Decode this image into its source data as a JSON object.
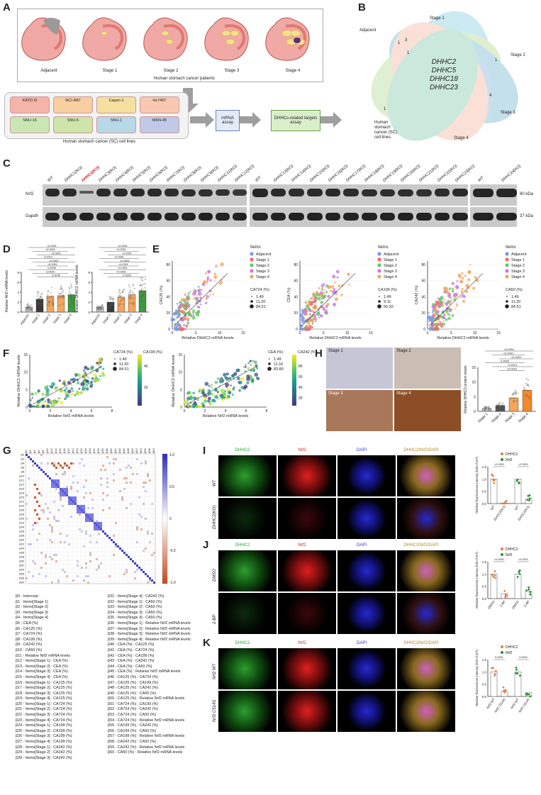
{
  "panels": {
    "A": {
      "letter": "A",
      "stomach_labels": [
        "Adjacent",
        "Stage 1",
        "Stage 2",
        "Stage 3",
        "Stage 4"
      ],
      "patients_caption": "Human stomach cancer patients",
      "cell_lines": [
        "KATO III",
        "NCI-N87",
        "Capan-1",
        "Hs746T",
        "SNU-16",
        "SNU-5",
        "SNU-1",
        "MKN-45"
      ],
      "cell_lines_caption": "Human stomach cancer (SC) cell lines",
      "step1": "mRNA assay",
      "step2": "DHHCs-related targets assay"
    },
    "B": {
      "letter": "B",
      "sets": [
        "Stage 1",
        "Adjacent",
        "Stage 2",
        "Stage 3",
        "Stage 4",
        "Human stomach cancer (SC) cell lines"
      ],
      "center_genes": [
        "DHHC2",
        "DHHC5",
        "DHHC18",
        "DHHC23"
      ],
      "counts": [
        "1",
        "3",
        "1",
        "1",
        "4",
        "1"
      ]
    },
    "C": {
      "letter": "C",
      "lanes_1": [
        "WT",
        "DHHC1(KO)",
        "DHHC2(KO)",
        "DHHC3(KO)",
        "DHHC4(KO)",
        "DHHC5(KO)",
        "DHHC6(KO)",
        "DHHC7(KO)",
        "DHHC8(KO)",
        "DHHC9(KO)",
        "DHHC11(KO)",
        "DHHC12(KO)"
      ],
      "lanes_2": [
        "WT",
        "DHHC13(KO)",
        "DHHC14(KO)",
        "DHHC15(KO)",
        "DHHC16(KO)",
        "DHHC17(KO)",
        "DHHC18(KO)",
        "DHHC19(KO)",
        "DHHC20(KO)",
        "DHHC21(KO)",
        "DHHC22(KO)",
        "DHHC23(KO)"
      ],
      "lanes_3": [
        "WT",
        "DHHC24(KO)"
      ],
      "highlight_lane": "DHHC2(KO)",
      "highlight_color": "#d0191c",
      "rows": [
        "Nrf2",
        "Gapdh"
      ],
      "sizes": [
        "80 kDa",
        "37 kDa"
      ],
      "nrf2_levels_1": [
        0.92,
        0.9,
        0.35,
        0.88,
        0.9,
        0.92,
        0.9,
        0.88,
        0.86,
        0.84,
        0.8,
        0.75
      ],
      "nrf2_levels_2": [
        0.95,
        0.9,
        0.88,
        0.9,
        0.9,
        0.88,
        0.85,
        0.86,
        0.84,
        0.82,
        0.88,
        0.9
      ],
      "nrf2_levels_3": [
        0.95,
        0.95
      ]
    },
    "D": {
      "letter": "D",
      "ylabel1": "Relative Nrf2 mRNA levels",
      "ylabel2": "Relative DHHC2 mRNA levels",
      "categories": [
        "Adjacent",
        "Stage 1",
        "Stage 2",
        "Stage 3",
        "Stage 4"
      ],
      "pvalues1": [
        "<0.0001",
        "<0.0001",
        "<0.0001",
        "0.0010",
        "<0.0001",
        "<0.0001",
        "0.5208",
        "0.0429",
        "0.0045"
      ],
      "pvalues2": [
        "<0.0001",
        "<0.0001",
        "<0.0001",
        "<0.0001",
        "<0.0001",
        "<0.0001",
        "<0.0001",
        "<0.0001",
        "0.9999"
      ]
    },
    "E": {
      "letter": "E",
      "xlabel": "Relative DHHC2 mRNA levels",
      "ylabels": [
        "CA125 (%)",
        "CEA (%)",
        "CA242 (%)"
      ],
      "legend_title": "Items",
      "size_titles": [
        "CA724 (%)",
        "CA199 (%)",
        "CA50 (%)"
      ],
      "size_values": [
        [
          "1.49",
          "11.20",
          "84.51"
        ],
        [
          "1.49",
          "9.11",
          "55.92"
        ],
        [
          "1.49",
          "11.20",
          "84.51"
        ]
      ],
      "items": [
        "Adjacent",
        "Stage 1",
        "Stage 2",
        "Stage 3",
        "Stage 4"
      ],
      "item_colors": [
        "#7b9be8",
        "#f06a6a",
        "#6cc46c",
        "#c77be0",
        "#f5a55a"
      ]
    },
    "F": {
      "letter": "F",
      "xlabel": "Relative Nrf2 mRNA levels",
      "ylabel": "Relative DHHC2 mRNA levels",
      "color_titles": [
        "CA199 (%)",
        "CA242 (%)"
      ],
      "size_titles": [
        "CA724 (%)",
        "CEA (%)"
      ],
      "size_values": [
        [
          "1.49",
          "11.20",
          "84.51"
        ],
        [
          "1.49",
          "11.16",
          "83.80"
        ]
      ]
    },
    "G": {
      "letter": "G",
      "colorbar_ticks": [
        "1.0",
        "0.5",
        "0",
        "-0.5",
        "-1.0"
      ],
      "legend_col1": [
        "β0 - Intercept",
        "β1 - Items[Stage 1]",
        "β2 - Items[Stage 2]",
        "β3 - Items[Stage 3]",
        "β4 - Items[Stage 4]",
        "β5 - CEA (%)",
        "β6 - CA125 (%)",
        "β7 - CA724 (%)",
        "β8 - CA199 (%)",
        "β9 - CA242 (%)",
        "β10 - CA50 (%)",
        "β11 - Relative Nrf2 mRNA levels",
        "β12 - Items[Stage 1] : CEA (%)",
        "β13 - Items[Stage 2] : CEA (%)",
        "β14 - Items[Stage 3] : CEA (%)",
        "β15 - Items[Stage 4] : CEA (%)",
        "β16 - Items[Stage 1] : CA125 (%)",
        "β17 - Items[Stage 2] : CA125 (%)",
        "β18 - Items[Stage 3] : CA125 (%)",
        "β19 - Items[Stage 4] : CA125 (%)",
        "β20 - Items[Stage 1] : CA724 (%)",
        "β21 - Items[Stage 2] : CA724 (%)",
        "β22 - Items[Stage 3] : CA724 (%)",
        "β23 - Items[Stage 4] : CA724 (%)",
        "β24 - Items[Stage 1] : CA199 (%)",
        "β25 - Items[Stage 2] : CA199 (%)",
        "β26 - Items[Stage 3] : CA199 (%)",
        "β27 - Items[Stage 4] : CA199 (%)",
        "β28 - Items[Stage 1] : CA242 (%)",
        "β29 - Items[Stage 2] : CA242 (%)",
        "β30 - Items[Stage 3] : CA242 (%)"
      ],
      "legend_col2": [
        "β31 - Items[Stage 4] : CA242 (%)",
        "β32 - Items[Stage 1] : CA50 (%)",
        "β33 - Items[Stage 2] : CA50 (%)",
        "β34 - Items[Stage 3] : CA50 (%)",
        "β35 - Items[Stage 4] : CA50 (%)",
        "β36 - Items[Stage 1] : Relative Nrf2 mRNA levels",
        "β37 - Items[Stage 2] : Relative Nrf2 mRNA levels",
        "β38 - Items[Stage 3] : Relative Nrf2 mRNA levels",
        "β39 - Items[Stage 4] : Relative Nrf2 mRNA levels",
        "β40 - CEA (%) : CA125 (%)",
        "β41 - CEA (%) : CA724 (%)",
        "β42 - CEA (%) : CA199 (%)",
        "β43 - CEA (%) : CA242 (%)",
        "β44 - CEA (%) : CA50 (%)",
        "β45 - CEA (%) : Relative Nrf2 mRNA levels",
        "β46 - CA125 (%) : CA724 (%)",
        "β47 - CA125 (%) : CA199 (%)",
        "β48 - CA125 (%) : CA242 (%)",
        "β49 - CA125 (%) : CA50 (%)",
        "β50 - CA125 (%) : Relative Nrf2 mRNA levels",
        "β51 - CA724 (%) : CA199 (%)",
        "β52 - CA724 (%) : CA242 (%)",
        "β53 - CA724 (%) : CA50 (%)",
        "β54 - CA724 (%) : Relative Nrf2 mRNA levels",
        "β55 - CA199 (%) : CA242 (%)",
        "β56 - CA199 (%) : CA50 (%)",
        "β57 - CA199 (%) : Relative Nrf2 mRNA levels",
        "β58 - CA242 (%) : CA50 (%)",
        "β59 - CA242 (%) : Relative Nrf2 mRNA levels",
        "β60 - CA50 (%) : Relative Nrf2 mRNA levels"
      ]
    },
    "H": {
      "letter": "H",
      "tiles": [
        "Stage 1",
        "Stage 2",
        "Stage 3",
        "Stage 4"
      ],
      "ylabel": "Relative DHHC2 protein levels",
      "categories": [
        "Stage 1",
        "Stage 2",
        "Stage 3",
        "Stage 4"
      ],
      "pvalues": [
        "<0.0001",
        "<0.0001",
        "<0.0001",
        "0.2605",
        "0.0014",
        "<0.0001"
      ]
    },
    "I": {
      "letter": "I",
      "channels": [
        "DHHC2",
        "Nrf2",
        "DAPI",
        "DHHC2/Nrf2/DAPI"
      ],
      "rows": [
        "WT",
        "DHHC2(KO)"
      ],
      "legend": [
        "DHHC2",
        "Nrf2"
      ],
      "ylabel": "Relative fluorescence intensity (fold of WT)",
      "xcats": [
        "WT",
        "DHHC2(KO)",
        "WT",
        "DHHC2(KO)"
      ],
      "pvalues": [
        "<0.0001",
        "<0.0001"
      ]
    },
    "J": {
      "letter": "J",
      "channels": [
        "DHHC2",
        "Nrf2",
        "DAPI",
        "DHHC2/Nrf2/DAPI"
      ],
      "rows": [
        "DMSO",
        "2-BP"
      ],
      "legend": [
        "DHHC2",
        "Nrf2"
      ],
      "ylabel": "Relative fluorescence intensity (fold of WT)",
      "xcats": [
        "DMSO",
        "2-BP",
        "DMSO",
        "2-BP"
      ],
      "pvalues": [
        "<0.0001",
        "<0.0001"
      ]
    },
    "K": {
      "letter": "K",
      "channels": [
        "DHHC2",
        "Nrf2",
        "DAPI",
        "DHHC2/Nrf2/DAPI"
      ],
      "rows": [
        "Nrf2 WT",
        "Nrf2 C514S"
      ],
      "legend": [
        "DHHC2",
        "Nrf2"
      ],
      "ylabel": "Relative fluorescence intensity (fold of WT)",
      "xcats": [
        "Nrf2 WT",
        "Nrf2 C514S",
        "Nrf2 WT",
        "Nrf2 C514S"
      ],
      "pvalues": [
        "0.0001",
        "0.0002"
      ]
    }
  },
  "chart_data": [
    {
      "type": "bar",
      "id": "D-left",
      "categories": [
        "Adjacent",
        "Stage 1",
        "Stage 2",
        "Stage 3",
        "Stage 4"
      ],
      "values": [
        1.0,
        2.6,
        3.2,
        3.3,
        3.5
      ],
      "ylim": [
        0,
        8
      ],
      "colors": [
        "#bfbfbf",
        "#3a3a3a",
        "#f5a55a",
        "#f5a55a",
        "#3b9a3b"
      ]
    },
    {
      "type": "bar",
      "id": "D-right",
      "categories": [
        "Adjacent",
        "Stage 1",
        "Stage 2",
        "Stage 3",
        "Stage 4"
      ],
      "values": [
        1.0,
        2.0,
        3.0,
        3.5,
        4.3
      ],
      "ylim": [
        0,
        8
      ],
      "colors": [
        "#bfbfbf",
        "#3a3a3a",
        "#f5a55a",
        "#f5a55a",
        "#3b9a3b"
      ]
    },
    {
      "type": "scatter",
      "id": "E1",
      "xlabel": "Relative DHHC2 mRNA levels",
      "ylabel": "CA125 (%)",
      "xlim": [
        0,
        15
      ],
      "ylim": [
        0,
        80
      ]
    },
    {
      "type": "scatter",
      "id": "E2",
      "xlabel": "Relative DHHC2 mRNA levels",
      "ylabel": "CEA (%)",
      "xlim": [
        0,
        15
      ],
      "ylim": [
        0,
        80
      ]
    },
    {
      "type": "scatter",
      "id": "E3",
      "xlabel": "Relative DHHC2 mRNA levels",
      "ylabel": "CA242 (%)",
      "xlim": [
        0,
        15
      ],
      "ylim": [
        0,
        80
      ]
    },
    {
      "type": "scatter",
      "id": "F1",
      "xlabel": "Relative Nrf2 mRNA levels",
      "ylabel": "Relative DHHC2 mRNA levels",
      "xlim": [
        0,
        8
      ],
      "ylim": [
        0,
        15
      ],
      "color_range": [
        1,
        50
      ]
    },
    {
      "type": "scatter",
      "id": "F2",
      "xlabel": "Relative Nrf2 mRNA levels",
      "ylabel": "Relative DHHC2 mRNA levels",
      "xlim": [
        0,
        8
      ],
      "ylim": [
        0,
        15
      ],
      "color_range": [
        1,
        80
      ]
    },
    {
      "type": "heatmap",
      "id": "G",
      "n": 61,
      "colorbar": [
        -1,
        1
      ]
    },
    {
      "type": "bar",
      "id": "H",
      "categories": [
        "Stage 1",
        "Stage 2",
        "Stage 3",
        "Stage 4"
      ],
      "values": [
        1.0,
        2.0,
        4.6,
        7.2
      ],
      "ylim": [
        0,
        15
      ],
      "colors": [
        "#bfbfbf",
        "#555555",
        "#f5a55a",
        "#f08a2a"
      ]
    },
    {
      "type": "bar",
      "id": "I",
      "categories": [
        "WT",
        "DHHC2(KO)",
        "WT",
        "DHHC2(KO)"
      ],
      "values": [
        1.0,
        0.02,
        1.0,
        0.18
      ],
      "ylim": [
        0,
        1.5
      ]
    },
    {
      "type": "bar",
      "id": "J",
      "categories": [
        "DMSO",
        "2-BP",
        "DMSO",
        "2-BP"
      ],
      "values": [
        1.0,
        0.2,
        1.0,
        0.3
      ],
      "ylim": [
        0,
        1.5
      ]
    },
    {
      "type": "bar",
      "id": "K",
      "categories": [
        "Nrf2 WT",
        "Nrf2 C514S",
        "Nrf2 WT",
        "Nrf2 C514S"
      ],
      "values": [
        1.0,
        0.2,
        1.0,
        0.15
      ],
      "ylim": [
        0,
        1.5
      ]
    }
  ]
}
